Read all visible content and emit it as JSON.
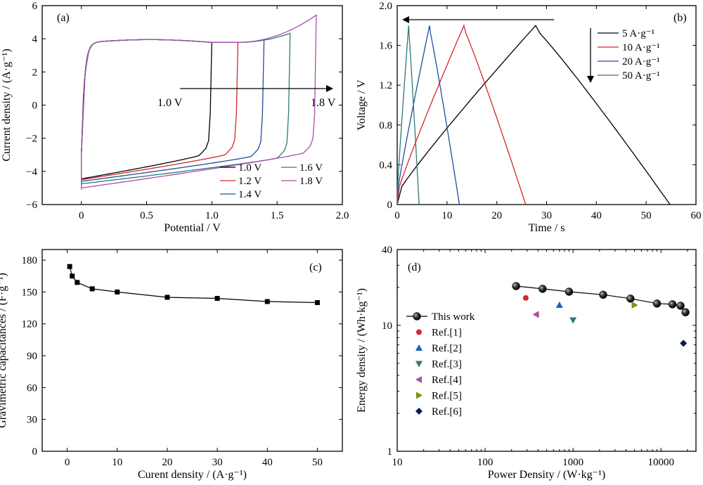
{
  "chart_data": [
    {
      "panel": "(a)",
      "type": "line",
      "xlabel": "Potential / V",
      "ylabel": "Current density / (A·g⁻¹)",
      "xlim": [
        -0.3,
        2.0
      ],
      "ylim": [
        -6,
        6
      ],
      "xticks": [
        "0",
        "0.5",
        "1.0",
        "1.5",
        "2.0"
      ],
      "xtick_values": [
        0,
        0.5,
        1.0,
        1.5,
        2.0
      ],
      "yticks": [
        "−6",
        "−4",
        "−2",
        "0",
        "2",
        "4",
        "6"
      ],
      "ytick_values": [
        -6,
        -4,
        -2,
        0,
        2,
        4,
        6
      ],
      "annotations": {
        "start": "1.0 V",
        "end": "1.8 V"
      },
      "legend_position": "bottom-right",
      "series": [
        {
          "name": "1.0 V",
          "color": "#000000",
          "vmax": 1.0,
          "i_top_end": 3.75,
          "i_bottom_start": -4.55,
          "i_bottom_end": -2.75
        },
        {
          "name": "1.2 V",
          "color": "#d62728",
          "vmax": 1.2,
          "i_top_end": 3.75,
          "i_bottom_start": -4.6,
          "i_bottom_end": -2.7
        },
        {
          "name": "1.4 V",
          "color": "#1f4e9c",
          "vmax": 1.4,
          "i_top_end": 3.9,
          "i_bottom_start": -4.7,
          "i_bottom_end": -2.8
        },
        {
          "name": "1.6 V",
          "color": "#2e7a78",
          "vmax": 1.6,
          "i_top_end": 4.3,
          "i_bottom_start": -4.85,
          "i_bottom_end": -2.9
        },
        {
          "name": "1.8 V",
          "color": "#a84fa8",
          "vmax": 1.8,
          "i_top_end": 5.4,
          "i_bottom_start": -5.1,
          "i_bottom_end": -2.6
        }
      ]
    },
    {
      "panel": "(b)",
      "type": "line",
      "xlabel": "Time / s",
      "ylabel": "Voltage / V",
      "xlim": [
        0,
        60
      ],
      "ylim": [
        0,
        2.0
      ],
      "xticks": [
        "0",
        "10",
        "20",
        "30",
        "40",
        "50",
        "60"
      ],
      "xtick_values": [
        0,
        10,
        20,
        30,
        40,
        50,
        60
      ],
      "yticks": [
        "0",
        "0.4",
        "0.8",
        "1.2",
        "1.6",
        "2.0"
      ],
      "ytick_values": [
        0,
        0.4,
        0.8,
        1.2,
        1.6,
        2.0
      ],
      "legend_position": "top-right",
      "series": [
        {
          "name": "5 A·g⁻¹",
          "color": "#000000",
          "x": [
            0,
            27.8,
            54.8
          ],
          "y": [
            0,
            1.8,
            0
          ]
        },
        {
          "name": "10 A·g⁻¹",
          "color": "#d62728",
          "x": [
            0,
            13.4,
            25.8
          ],
          "y": [
            0,
            1.8,
            0
          ]
        },
        {
          "name": "20 A·g⁻¹",
          "color": "#1f4e9c",
          "x": [
            0,
            6.5,
            12.5
          ],
          "y": [
            0,
            1.8,
            0
          ]
        },
        {
          "name": "50 A·g⁻¹",
          "color": "#2e7a78",
          "x": [
            0,
            2.3,
            4.4
          ],
          "y": [
            0,
            1.8,
            0
          ]
        }
      ]
    },
    {
      "panel": "(c)",
      "type": "line",
      "xlabel": "Curent density / (A·g⁻¹)",
      "ylabel": "Gravimetric capacitances / (F·g⁻¹)",
      "xlim": [
        -5,
        55
      ],
      "ylim": [
        0,
        190
      ],
      "xticks": [
        "0",
        "10",
        "20",
        "30",
        "40",
        "50"
      ],
      "xtick_values": [
        0,
        10,
        20,
        30,
        40,
        50
      ],
      "yticks": [
        "0",
        "30",
        "60",
        "90",
        "120",
        "150",
        "180"
      ],
      "ytick_values": [
        0,
        30,
        60,
        90,
        120,
        150,
        180
      ],
      "series": [
        {
          "name": "",
          "color": "#000000",
          "x": [
            0.5,
            1,
            2,
            5,
            10,
            20,
            30,
            40,
            50
          ],
          "y": [
            174,
            165,
            159,
            153,
            150,
            145,
            144,
            141,
            140
          ]
        }
      ]
    },
    {
      "panel": "(d)",
      "type": "scatter",
      "xlabel": "Power Density / (W·kg⁻¹)",
      "ylabel": "Energy density / (Wh·kg⁻¹)",
      "xscale": "log",
      "yscale": "log",
      "xlim": [
        10,
        25000
      ],
      "ylim": [
        1,
        40
      ],
      "xticks": [
        "10",
        "100",
        "1000",
        "10000"
      ],
      "xtick_values": [
        10,
        100,
        1000,
        10000
      ],
      "yticks": [
        "1",
        "10",
        "40"
      ],
      "ytick_values": [
        1,
        10,
        40
      ],
      "legend_position": "left",
      "series": [
        {
          "name": "This work",
          "color": "#000000",
          "marker": "sphere",
          "x": [
            225,
            450,
            900,
            2200,
            4500,
            9000,
            13500,
            16700,
            19000
          ],
          "y": [
            20.5,
            19.5,
            18.5,
            17.5,
            16.3,
            14.9,
            14.7,
            14.3,
            12.7
          ]
        },
        {
          "name": "Ref.[1]",
          "color": "#d62728",
          "marker": "circle",
          "x": [
            290
          ],
          "y": [
            16.5
          ]
        },
        {
          "name": "Ref.[2]",
          "color": "#1f5fbf",
          "marker": "triangle-up",
          "x": [
            700
          ],
          "y": [
            14.5
          ]
        },
        {
          "name": "Ref.[3]",
          "color": "#2e7a78",
          "marker": "triangle-down",
          "x": [
            1000
          ],
          "y": [
            11.0
          ]
        },
        {
          "name": "Ref.[4]",
          "color": "#a84fa8",
          "marker": "triangle-left",
          "x": [
            380
          ],
          "y": [
            12.2
          ]
        },
        {
          "name": "Ref.[5]",
          "color": "#8a8a10",
          "marker": "triangle-right",
          "x": [
            5000
          ],
          "y": [
            14.5
          ]
        },
        {
          "name": "Ref.[6]",
          "color": "#0a1a5c",
          "marker": "diamond",
          "x": [
            18000
          ],
          "y": [
            7.2
          ]
        }
      ]
    }
  ]
}
